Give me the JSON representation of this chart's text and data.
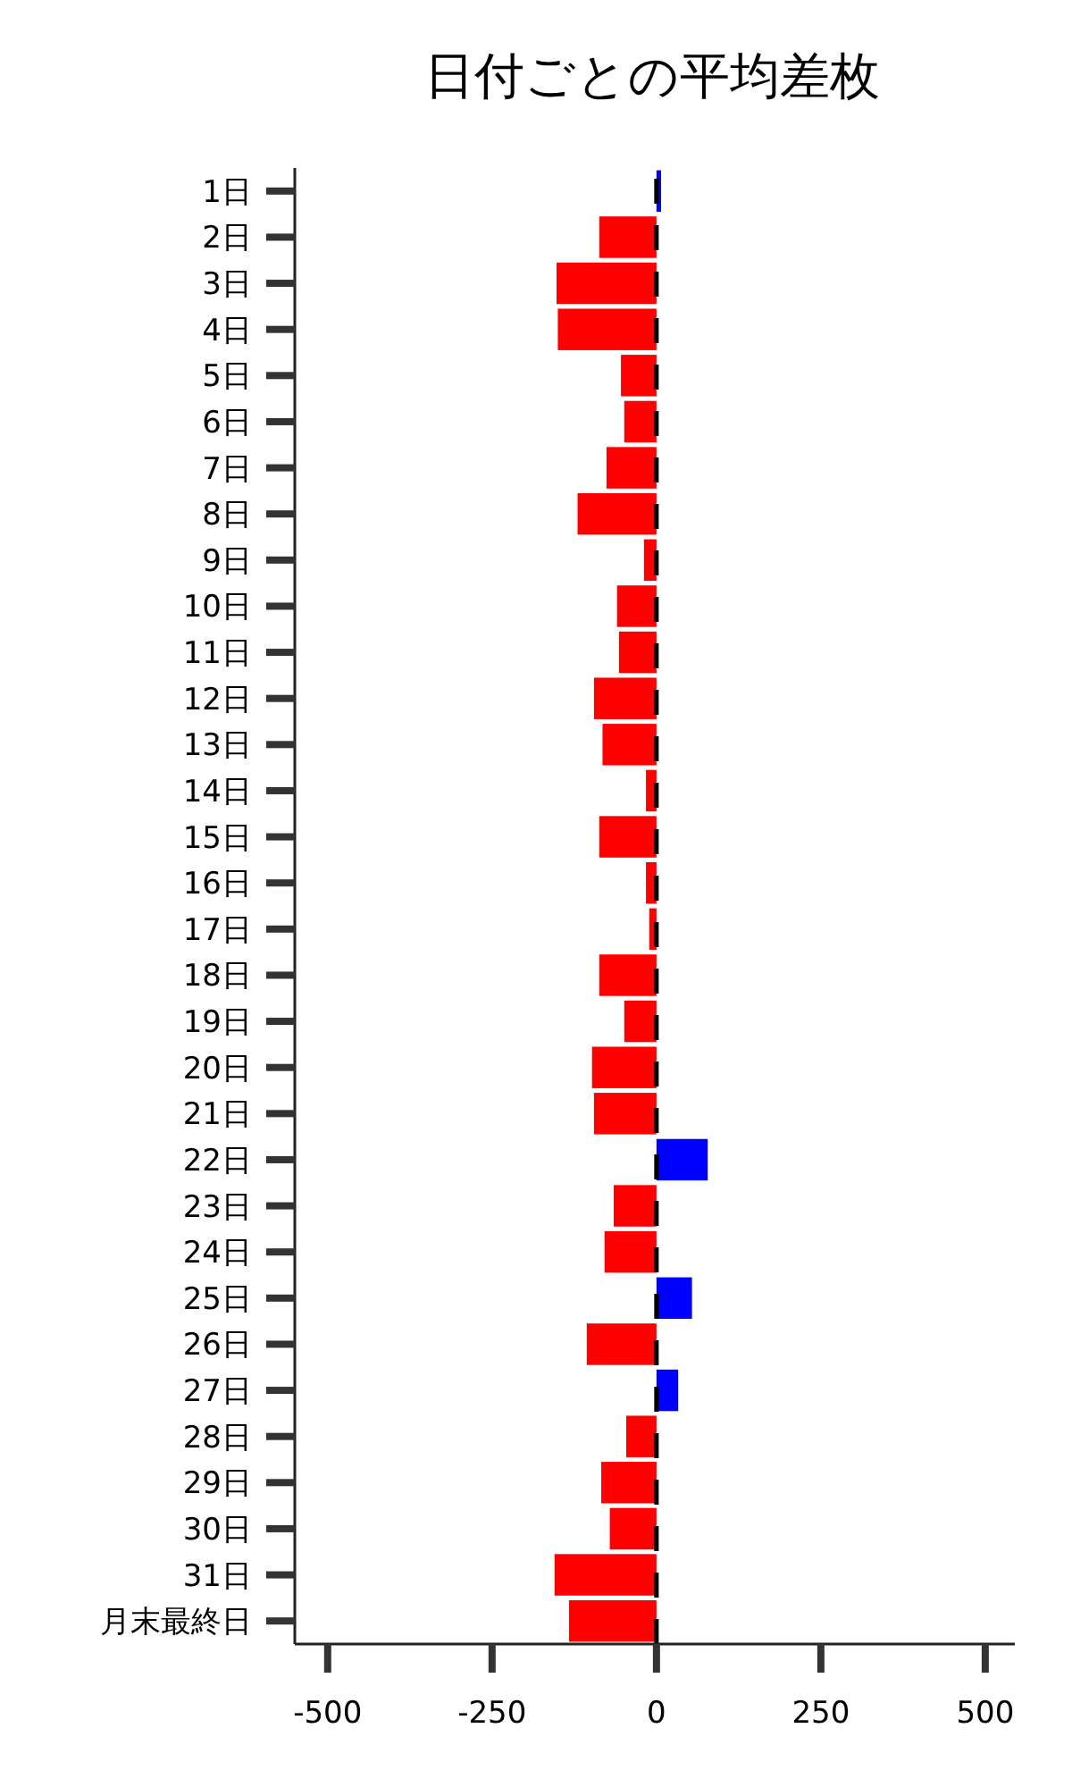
{
  "chart_data": {
    "type": "bar",
    "orientation": "horizontal",
    "title": "日付ごとの平均差枚",
    "categories": [
      "1日",
      "2日",
      "3日",
      "4日",
      "5日",
      "6日",
      "7日",
      "8日",
      "9日",
      "10日",
      "11日",
      "12日",
      "13日",
      "14日",
      "15日",
      "16日",
      "17日",
      "18日",
      "19日",
      "20日",
      "21日",
      "22日",
      "23日",
      "24日",
      "25日",
      "26日",
      "27日",
      "28日",
      "29日",
      "30日",
      "31日",
      "月末最終日"
    ],
    "values": [
      7,
      -87,
      -152,
      -150,
      -54,
      -49,
      -76,
      -120,
      -19,
      -60,
      -57,
      -95,
      -82,
      -16,
      -87,
      -16,
      -11,
      -87,
      -49,
      -98,
      -95,
      78,
      -65,
      -79,
      54,
      -106,
      33,
      -46,
      -84,
      -71,
      -155,
      -133
    ],
    "colors": [
      "#0000ff",
      "#ff0000",
      "#ff0000",
      "#ff0000",
      "#ff0000",
      "#ff0000",
      "#ff0000",
      "#ff0000",
      "#ff0000",
      "#ff0000",
      "#ff0000",
      "#ff0000",
      "#ff0000",
      "#ff0000",
      "#ff0000",
      "#ff0000",
      "#ff0000",
      "#ff0000",
      "#ff0000",
      "#ff0000",
      "#ff0000",
      "#0000ff",
      "#ff0000",
      "#ff0000",
      "#0000ff",
      "#ff0000",
      "#0000ff",
      "#ff0000",
      "#ff0000",
      "#ff0000",
      "#ff0000",
      "#ff0000"
    ],
    "xlim": [
      -550,
      545
    ],
    "xticks": [
      -500,
      -250,
      0,
      250,
      500
    ],
    "ref_lines": [
      {
        "axis": "x",
        "value": 0,
        "color": "#000000",
        "line_style": "dashed"
      }
    ]
  }
}
